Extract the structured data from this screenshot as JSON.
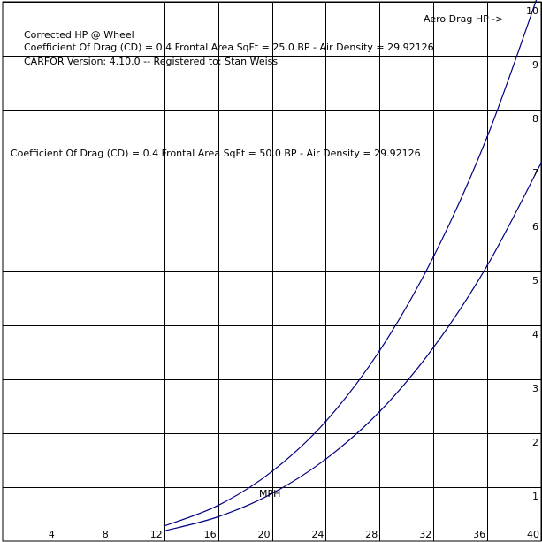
{
  "colors": {
    "background": "#ffffff",
    "grid": "#000000",
    "curve": "#000080",
    "text": "#000000"
  },
  "chart_data": {
    "type": "line",
    "title": "Corrected HP @ Wheel",
    "subtitle_lines": [
      "Coefficient Of Drag (CD) = 0.4   Frontal Area SqFt = 25.0   BP - Air Density = 29.92126",
      "CARFOR Version: 4.10.0 -- Registered to:   Stan Weiss"
    ],
    "series_label": "Coefficient Of Drag (CD) = 0.4   Frontal Area SqFt = 50.0   BP - Air Density = 29.92126",
    "xlabel": "MPH",
    "ylabel": "Aero Drag HP ->",
    "x_ticks": [
      "4",
      "8",
      "12",
      "16",
      "20",
      "24",
      "28",
      "32",
      "36",
      "40"
    ],
    "y_ticks": [
      "1",
      "2",
      "3",
      "4",
      "5",
      "6",
      "7",
      "8",
      "9",
      "10"
    ],
    "xlim": [
      0,
      40
    ],
    "ylim": [
      0,
      10
    ],
    "grid": true,
    "series": [
      {
        "x": [
          12,
          16,
          20,
          24,
          28,
          32,
          36,
          40
        ],
        "y": [
          0.19,
          0.45,
          0.88,
          1.52,
          2.4,
          3.59,
          5.11,
          7.01
        ],
        "color": "#000080"
      },
      {
        "x": [
          12,
          16,
          20,
          24,
          28,
          32,
          36,
          40
        ],
        "y": [
          0.28,
          0.66,
          1.29,
          2.22,
          3.53,
          5.27,
          7.5,
          10.29
        ],
        "color": "#000080"
      }
    ]
  }
}
